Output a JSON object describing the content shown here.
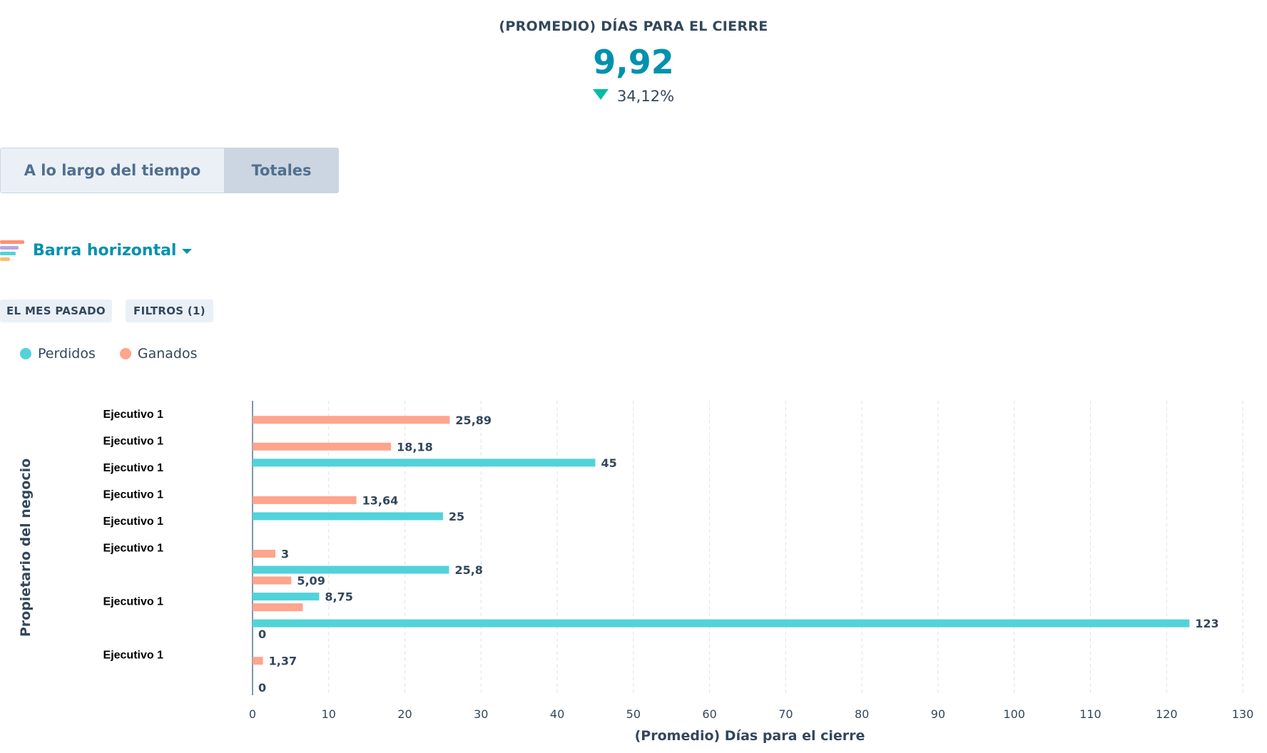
{
  "kpi": {
    "title": "(PROMEDIO) DÍAS PARA EL CIERRE",
    "value": "9,92",
    "change": "34,12%",
    "change_direction": "down",
    "change_color": "#00bda5",
    "value_color": "#0091ae"
  },
  "tabs": [
    {
      "label": "A lo largo del tiempo",
      "selected": false
    },
    {
      "label": "Totales",
      "selected": true
    }
  ],
  "chart_type_selector": {
    "label": "Barra horizontal",
    "icon": "horizontal-bar-chart-icon"
  },
  "filters": {
    "date_range": "EL MES PASADO",
    "filters_label": "FILTROS (1)"
  },
  "legend": [
    {
      "label": "Perdidos",
      "color": "#51d3d9"
    },
    {
      "label": "Ganados",
      "color": "#ffa48d"
    }
  ],
  "chart_data": {
    "type": "bar",
    "orientation": "horizontal",
    "title": "",
    "xlabel": "(Promedio) Días para el cierre",
    "ylabel": "Propietario del negocio",
    "xlim": [
      0,
      130
    ],
    "xticks": [
      0,
      10,
      20,
      30,
      40,
      50,
      60,
      70,
      80,
      90,
      100,
      110,
      120,
      130
    ],
    "grid": true,
    "legend_position": "top-left",
    "categories": [
      {
        "label": "Ejecutivo 1",
        "perdidos": null,
        "ganados": 25.89,
        "perdidos_label": "",
        "ganados_label": "25,89"
      },
      {
        "label": "Ejecutivo 1",
        "perdidos": null,
        "ganados": 18.18,
        "perdidos_label": "",
        "ganados_label": "18,18"
      },
      {
        "label": "Ejecutivo 1",
        "perdidos": 45,
        "ganados": null,
        "perdidos_label": "45",
        "ganados_label": ""
      },
      {
        "label": "Ejecutivo 1",
        "perdidos": null,
        "ganados": 13.64,
        "perdidos_label": "",
        "ganados_label": "13,64"
      },
      {
        "label": "Ejecutivo 1",
        "perdidos": 25,
        "ganados": null,
        "perdidos_label": "25",
        "ganados_label": ""
      },
      {
        "label": "Ejecutivo 1",
        "perdidos": null,
        "ganados": 3,
        "perdidos_label": "",
        "ganados_label": "3"
      },
      {
        "label": "",
        "perdidos": 25.8,
        "ganados": 5.09,
        "perdidos_label": "25,8",
        "ganados_label": "5,09"
      },
      {
        "label": "Ejecutivo 1",
        "perdidos": 8.75,
        "ganados": 6.6,
        "perdidos_label": "8,75",
        "ganados_label": ""
      },
      {
        "label": "",
        "perdidos": 123,
        "ganados": 0,
        "perdidos_label": "123",
        "ganados_label": "0"
      },
      {
        "label": "Ejecutivo 1",
        "perdidos": null,
        "ganados": 1.37,
        "perdidos_label": "",
        "ganados_label": "1,37"
      },
      {
        "label": "",
        "perdidos": null,
        "ganados": 0,
        "perdidos_label": "",
        "ganados_label": "0"
      }
    ]
  }
}
